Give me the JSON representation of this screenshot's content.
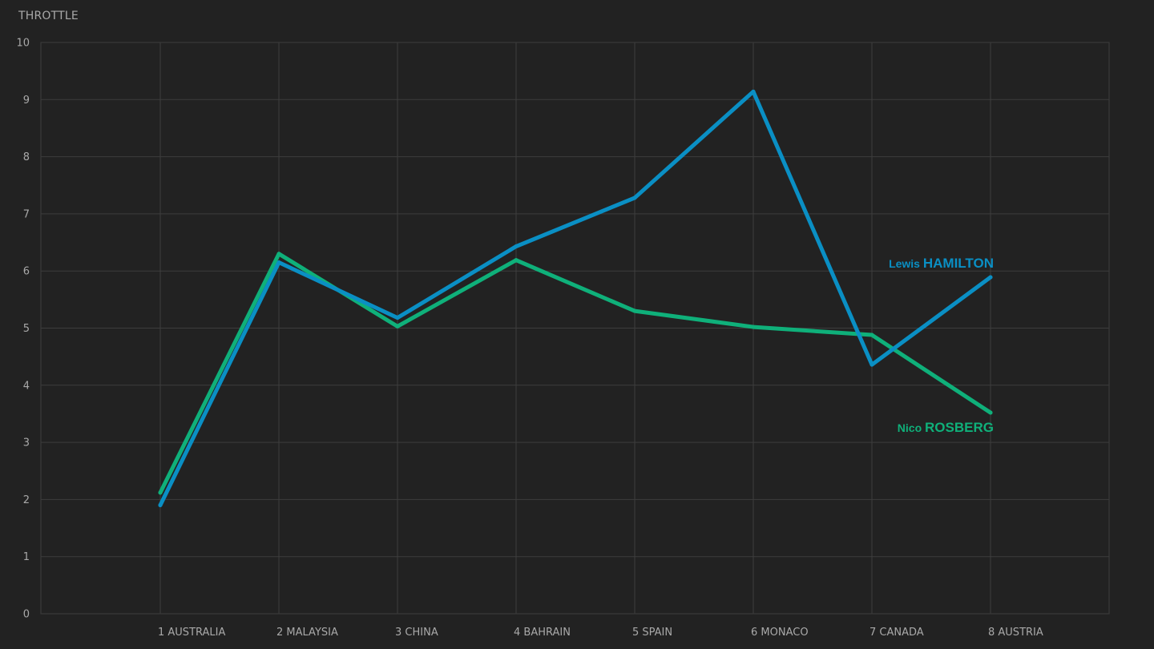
{
  "colors": {
    "background": "#222222",
    "grid": "#3d3d3d",
    "text": "#a9a9a9",
    "hamilton": "#0a8fc4",
    "rosberg": "#0fb07a"
  },
  "chart_data": {
    "type": "line",
    "ylabel": "THROTTLE",
    "xlabel": "",
    "title": "",
    "ylim": [
      0,
      10
    ],
    "yticks": [
      0,
      1,
      2,
      3,
      4,
      5,
      6,
      7,
      8,
      9,
      10
    ],
    "grid": true,
    "categories": [
      "1 AUSTRALIA",
      "2 MALAYSIA",
      "3 CHINA",
      "4 BAHRAIN",
      "5 SPAIN",
      "6 MONACO",
      "7 CANADA",
      "8 AUSTRIA"
    ],
    "series": [
      {
        "name": "Lewis HAMILTON",
        "first_name": "Lewis",
        "last_name": "HAMILTON",
        "color": "#0a8fc4",
        "values": [
          1.9,
          6.15,
          5.18,
          6.43,
          7.28,
          9.14,
          4.36,
          5.89
        ]
      },
      {
        "name": "Nico ROSBERG",
        "first_name": "Nico",
        "last_name": "ROSBERG",
        "color": "#0fb07a",
        "values": [
          2.12,
          6.3,
          5.03,
          6.19,
          5.3,
          5.02,
          4.88,
          3.52
        ]
      }
    ]
  }
}
